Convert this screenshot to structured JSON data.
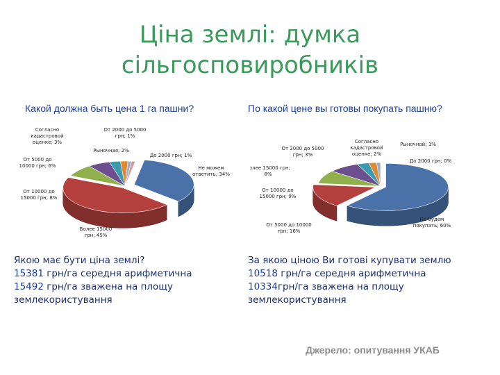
{
  "slide": {
    "title_line1": "Ціна землі: думка",
    "title_line2": "сільгосповиробників",
    "source": "Джерело: опитування УКАБ"
  },
  "left": {
    "question": "Какой должна быть цена 1 га пашни?",
    "summary": {
      "line1": "Якою має бути ціна землі?",
      "value_mean": "15381",
      "text_mean": " грн/га середня арифметична",
      "value_weighted": "15492",
      "text_weighted": " грн/га зважена на площу",
      "line4": "землекористування"
    }
  },
  "right": {
    "question": "По какой цене вы готовы покупать пашню?",
    "summary": {
      "line1": "За якою ціною Ви готові купувати землю",
      "value_mean": "10518",
      "text_mean": " грн/га середня арифметична",
      "value_weighted": "10334",
      "text_weighted": "грн/га зважена на площу",
      "line4": "землекористування"
    }
  },
  "chart_data": [
    {
      "type": "pie",
      "title": "Какой должна быть цена 1 га пашни?",
      "slices": [
        {
          "label": [
            "Не можем",
            "ответить; 34%"
          ],
          "value": 34,
          "color": "#4a72a8"
        },
        {
          "label": [
            "Более 15000",
            "грн; 45%"
          ],
          "value": 45,
          "color": "#b4403e"
        },
        {
          "label": [
            "От 10000 до",
            "15000 грн; 8%"
          ],
          "value": 8,
          "color": "#8fb04a"
        },
        {
          "label": [
            "От 5000 до",
            "10000 грн; 6%"
          ],
          "value": 6,
          "color": "#6b4f8e"
        },
        {
          "label": [
            "Согласно",
            "кадастровой",
            "оценке; 3%"
          ],
          "value": 3,
          "color": "#3a9bb0"
        },
        {
          "label": [
            "Рыночная; 2%"
          ],
          "value": 2,
          "color": "#e08a33"
        },
        {
          "label": [
            "От 2000 до 5000",
            "грн; 1%"
          ],
          "value": 1,
          "color": "#9aaed0"
        },
        {
          "label": [
            "До 2000 грн; 1%"
          ],
          "value": 1,
          "color": "#d49a98"
        }
      ]
    },
    {
      "type": "pie",
      "title": "По какой цене вы готовы покупать пашню?",
      "slices": [
        {
          "label": [
            "Не будем",
            "покупать; 60%"
          ],
          "value": 60,
          "color": "#4a72a8"
        },
        {
          "label": [
            "От 5000 до 10000",
            "грн; 16%"
          ],
          "value": 16,
          "color": "#b4403e"
        },
        {
          "label": [
            "От 10000 до",
            "15000 грн; 9%"
          ],
          "value": 9,
          "color": "#8fb04a"
        },
        {
          "label": [
            "Более 15000 грн;",
            "8%"
          ],
          "value": 8,
          "color": "#6b4f8e"
        },
        {
          "label": [
            "От 2000 до 5000",
            "грн; 3%"
          ],
          "value": 3,
          "color": "#3a9bb0"
        },
        {
          "label": [
            "Согласно",
            "кадастровой",
            "оценке; 2%"
          ],
          "value": 2,
          "color": "#e08a33"
        },
        {
          "label": [
            "Рыночной; 1%"
          ],
          "value": 1,
          "color": "#9aaed0"
        },
        {
          "label": [
            "До 2000 грн; 0%"
          ],
          "value": 0,
          "color": "#d49a98"
        }
      ]
    }
  ]
}
